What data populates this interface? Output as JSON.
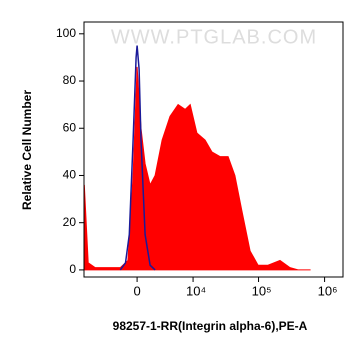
{
  "chart_data": {
    "type": "histogram-overlay",
    "watermark": "WWW.PTGLAB.COM",
    "xlabel": "98257-1-RR(Integrin alpha-6),PE-A",
    "ylabel": "Relative Cell Number",
    "xscale": "asinh",
    "xlim": [
      -9000,
      1900000
    ],
    "ylim": [
      -3,
      105
    ],
    "xticks": [
      0,
      {
        "value": 10000,
        "label": "10⁴"
      },
      {
        "value": 100000,
        "label": "10⁵"
      },
      {
        "value": 1000000,
        "label": "10⁶"
      }
    ],
    "yticks": [
      0,
      20,
      40,
      60,
      80,
      100
    ],
    "series": [
      {
        "style": "area",
        "color": "#ff0000",
        "x": [
          -8900,
          -7700,
          -5900,
          -1800,
          -940,
          -400,
          0,
          400,
          820,
          1360,
          1940,
          2860,
          4100,
          5700,
          7500,
          9000,
          11500,
          15400,
          19600,
          26000,
          34500,
          43800,
          56000,
          74500,
          98600,
          139000,
          211000,
          299000,
          396000,
          603000
        ],
        "values": [
          36,
          3,
          1,
          1,
          4,
          40,
          86,
          60,
          45,
          36,
          40,
          55,
          65,
          70,
          68,
          70,
          58,
          55,
          50,
          48,
          48,
          40,
          25,
          8,
          2,
          2,
          4,
          1,
          0,
          0
        ]
      },
      {
        "style": "line",
        "color": "#1a1a99",
        "x": [
          -1800,
          -1200,
          -800,
          -400,
          -100,
          0,
          200,
          400,
          820,
          1360,
          1940
        ],
        "values": [
          0,
          3,
          15,
          55,
          90,
          95,
          85,
          55,
          15,
          2,
          0
        ]
      }
    ]
  }
}
